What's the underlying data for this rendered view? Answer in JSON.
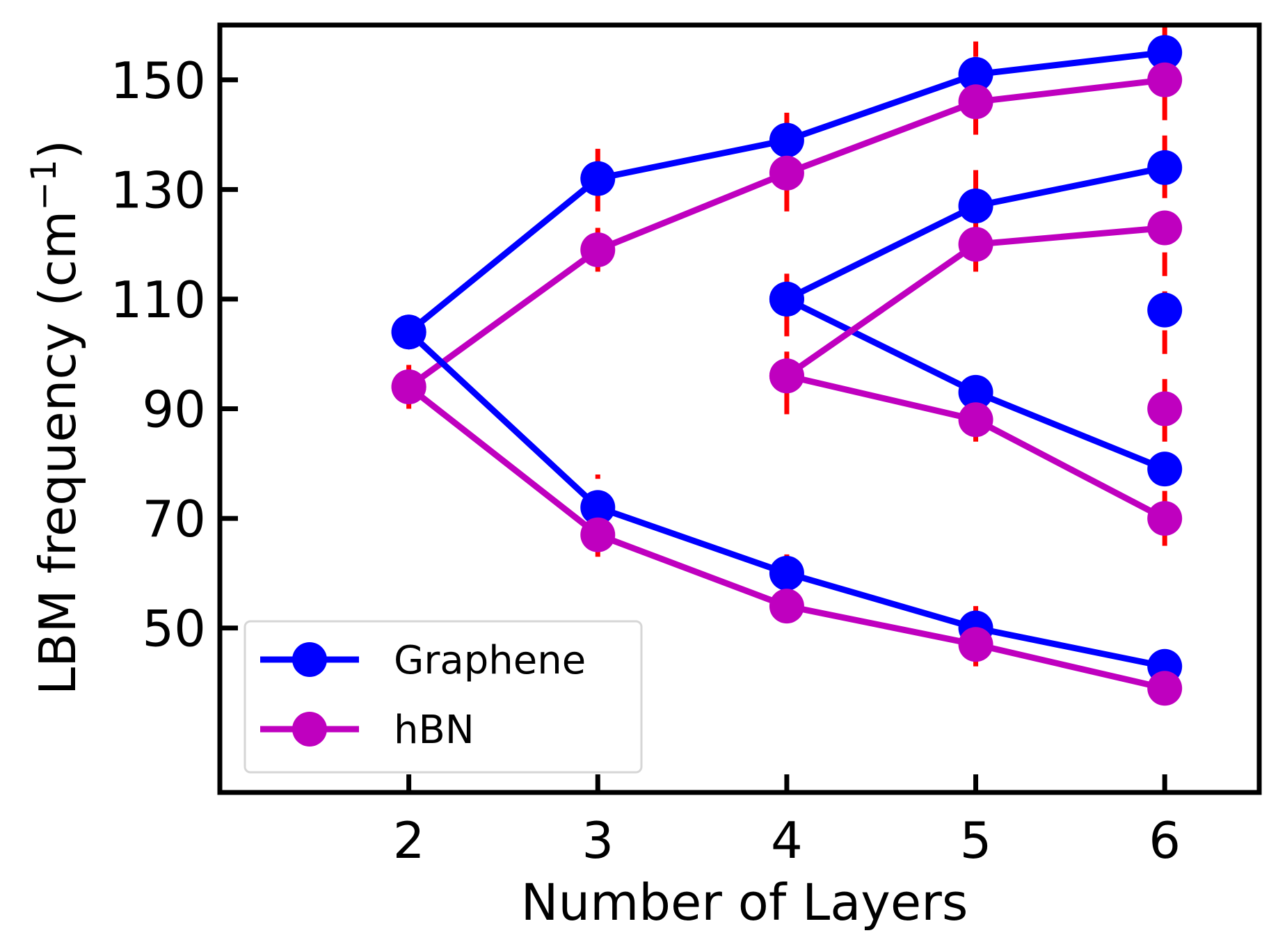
{
  "chart_data": {
    "type": "line",
    "xlabel": "Number of Layers",
    "ylabel_main": "LBM frequency (cm",
    "ylabel_sup": "−1",
    "ylabel_close": ")",
    "xlim": [
      1.0,
      6.5
    ],
    "ylim": [
      20,
      160
    ],
    "xticks": [
      2,
      3,
      4,
      5,
      6
    ],
    "xtick_labels": [
      "2",
      "3",
      "4",
      "5",
      "6"
    ],
    "yticks": [
      50,
      70,
      90,
      110,
      130,
      150
    ],
    "ytick_labels": [
      "50",
      "70",
      "90",
      "110",
      "130",
      "150"
    ],
    "grid": false,
    "legend_placement": "lower-left",
    "colors": {
      "graphene": "#0000ff",
      "hbn": "#bf00bf",
      "errorbar": "#ff0000",
      "axes": "#000000"
    },
    "legend": [
      {
        "label": "Graphene",
        "color": "#0000ff"
      },
      {
        "label": "hBN",
        "color": "#bf00bf"
      }
    ],
    "series": [
      {
        "color": "#0000ff",
        "x": [
          2,
          3,
          4,
          5,
          6
        ],
        "y": [
          104,
          132,
          139,
          151,
          155
        ]
      },
      {
        "color": "#bf00bf",
        "x": [
          2,
          3,
          4,
          5,
          6
        ],
        "y": [
          94,
          119,
          133,
          146,
          150
        ]
      },
      {
        "color": "#0000ff",
        "x": [
          2,
          3,
          4,
          5,
          6
        ],
        "y": [
          104,
          72,
          60,
          50,
          43
        ]
      },
      {
        "color": "#bf00bf",
        "x": [
          2,
          3,
          4,
          5,
          6
        ],
        "y": [
          94,
          67,
          54,
          47,
          39
        ]
      },
      {
        "color": "#0000ff",
        "x": [
          4,
          5,
          6
        ],
        "y": [
          110,
          127,
          134
        ]
      },
      {
        "color": "#0000ff",
        "x": [
          4,
          5,
          6
        ],
        "y": [
          110,
          93,
          79
        ]
      },
      {
        "color": "#bf00bf",
        "x": [
          4,
          5,
          6
        ],
        "y": [
          96,
          120,
          123
        ]
      },
      {
        "color": "#bf00bf",
        "x": [
          4,
          5,
          6
        ],
        "y": [
          96,
          88,
          70
        ]
      },
      {
        "color": "#0000ff",
        "x": [
          6
        ],
        "y": [
          108
        ]
      },
      {
        "color": "#bf00bf",
        "x": [
          6
        ],
        "y": [
          90
        ]
      }
    ],
    "errorbars": [
      {
        "x": 2,
        "low": 90,
        "high": 98
      },
      {
        "x": 3,
        "low": 126,
        "high": 138
      },
      {
        "x": 3,
        "low": 115,
        "high": 123
      },
      {
        "x": 3,
        "low": 63,
        "high": 78
      },
      {
        "x": 4,
        "low": 126,
        "high": 144
      },
      {
        "x": 4,
        "low": 89,
        "high": 116
      },
      {
        "x": 4,
        "low": 52,
        "high": 66
      },
      {
        "x": 5,
        "low": 140,
        "high": 157
      },
      {
        "x": 5,
        "low": 115,
        "high": 135
      },
      {
        "x": 5,
        "low": 84,
        "high": 97
      },
      {
        "x": 5,
        "low": 43,
        "high": 54
      },
      {
        "x": 6,
        "low": 100,
        "high": 160
      },
      {
        "x": 6,
        "low": 84,
        "high": 96
      },
      {
        "x": 6,
        "low": 65,
        "high": 75
      }
    ]
  }
}
